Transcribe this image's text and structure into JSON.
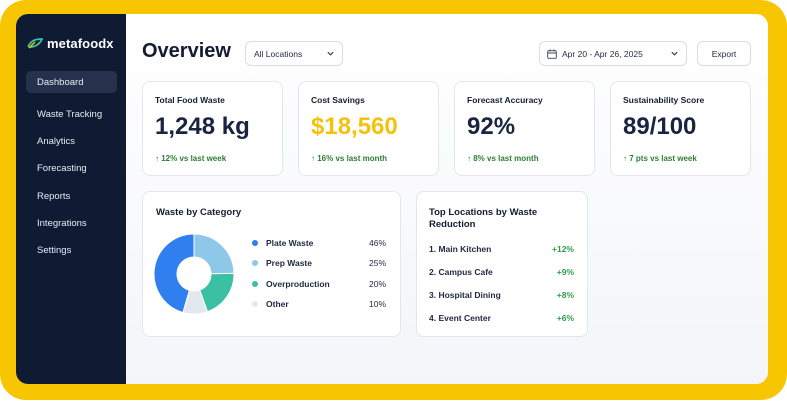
{
  "brand": {
    "name": "metafoodx"
  },
  "sidebar": {
    "items": [
      {
        "label": "Dashboard"
      },
      {
        "label": "Waste Tracking"
      },
      {
        "label": "Analytics"
      },
      {
        "label": "Forecasting"
      },
      {
        "label": "Reports"
      },
      {
        "label": "Integrations"
      },
      {
        "label": "Settings"
      }
    ],
    "active_index": 0
  },
  "header": {
    "title": "Overview",
    "location_select": "All Locations",
    "date_range": "Apr 20 - Apr 26, 2025",
    "export_label": "Export"
  },
  "kpis": [
    {
      "label": "Total Food Waste",
      "value": "1,248 kg",
      "delta": "↑ 12% vs last week"
    },
    {
      "label": "Cost Savings",
      "value": "$18,560",
      "delta": "↑ 16% vs last month"
    },
    {
      "label": "Forecast Accuracy",
      "value": "92%",
      "delta": "↑ 8% vs last month"
    },
    {
      "label": "Sustainability Score",
      "value": "89/100",
      "delta": "↑ 7 pts vs last week"
    }
  ],
  "waste_by_category": {
    "title": "Waste by Category",
    "items": [
      {
        "label": "Plate Waste",
        "pct": "46%",
        "value": 46,
        "color": "#2f7ff0"
      },
      {
        "label": "Prep Waste",
        "pct": "25%",
        "value": 25,
        "color": "#8ec8e8"
      },
      {
        "label": "Overproduction",
        "pct": "20%",
        "value": 20,
        "color": "#3cc0a3"
      },
      {
        "label": "Other",
        "pct": "10%",
        "value": 10,
        "color": "#e3e7ee"
      }
    ]
  },
  "top_locations": {
    "title": "Top Locations by Waste Reduction",
    "items": [
      {
        "name": "1. Main Kitchen",
        "change": "+12%"
      },
      {
        "name": "2. Campus Cafe",
        "change": "+9%"
      },
      {
        "name": "3. Hospital Dining",
        "change": "+8%"
      },
      {
        "name": "4. Event Center",
        "change": "+6%"
      }
    ]
  },
  "colors": {
    "frame": "#f7c600",
    "sidebar": "#0f1b33",
    "sidebar_active": "#26324d",
    "accent_gold": "#f4c20d",
    "positive": "#2e7d32",
    "positive_light": "#2e9e4a"
  }
}
